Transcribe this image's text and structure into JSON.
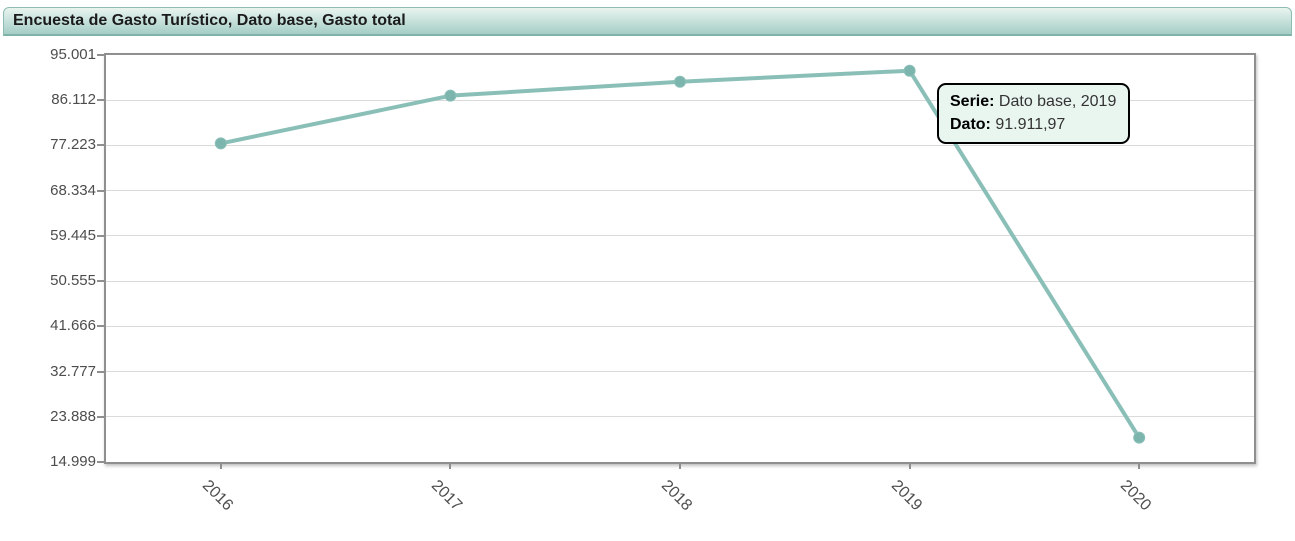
{
  "title": "Encuesta de Gasto Turístico, Dato base, Gasto total",
  "chart_data": {
    "type": "line",
    "title": "Encuesta de Gasto Turístico, Dato base, Gasto total",
    "categories": [
      "2016",
      "2017",
      "2018",
      "2019",
      "2020"
    ],
    "series": [
      {
        "name": "Dato base",
        "values": [
          77625,
          87004,
          89751,
          91911.97,
          19787
        ]
      }
    ],
    "y_tick_labels": [
      "95.001",
      "86.112",
      "77.223",
      "68.334",
      "59.445",
      "50.555",
      "41.666",
      "32.777",
      "23.888",
      "14.999"
    ],
    "y_tick_values": [
      95001,
      86112,
      77223,
      68334,
      59445,
      50555,
      41666,
      32777,
      23888,
      14999
    ],
    "ylim": [
      14999,
      95001
    ],
    "xlabel": "",
    "ylabel": "",
    "grid": "horizontal",
    "legend_position": "none",
    "marker": "circle"
  },
  "tooltip": {
    "serie_label": "Serie:",
    "serie_value": " Dato base, 2019",
    "dato_label": "Dato:",
    "dato_value": " 91.911,97"
  },
  "colors": {
    "line": "#8abfb8",
    "marker_fill": "#7cb5ad",
    "grid": "#dadada",
    "axis_border": "#8f8f8f",
    "tick_text": "#4d4d4d",
    "title_bar_top": "#e9f4ef",
    "title_bar_bottom": "#a4cec6",
    "title_bar_border": "#7fb2a8",
    "tooltip_bg": "#e9f5ef",
    "tooltip_border": "#000000"
  }
}
